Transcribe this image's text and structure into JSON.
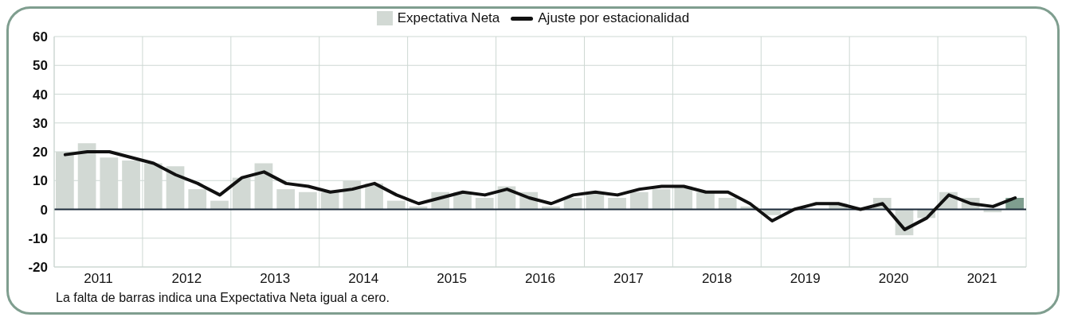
{
  "chart_data": {
    "type": "bar",
    "x": [
      2011.125,
      2011.375,
      2011.625,
      2011.875,
      2012.125,
      2012.375,
      2012.625,
      2012.875,
      2013.125,
      2013.375,
      2013.625,
      2013.875,
      2014.125,
      2014.375,
      2014.625,
      2014.875,
      2015.125,
      2015.375,
      2015.625,
      2015.875,
      2016.125,
      2016.375,
      2016.625,
      2016.875,
      2017.125,
      2017.375,
      2017.625,
      2017.875,
      2018.125,
      2018.375,
      2018.625,
      2018.875,
      2019.125,
      2019.375,
      2019.625,
      2019.875,
      2020.125,
      2020.375,
      2020.625,
      2020.875,
      2021.125,
      2021.375,
      2021.625,
      2021.875
    ],
    "series": [
      {
        "name": "Expectativa Neta",
        "color": "#d2d9d4",
        "colors": [
          "#d2d9d4",
          "#d2d9d4",
          "#d2d9d4",
          "#d2d9d4",
          "#d2d9d4",
          "#d2d9d4",
          "#d2d9d4",
          "#d2d9d4",
          "#d2d9d4",
          "#d2d9d4",
          "#d2d9d4",
          "#d2d9d4",
          "#d2d9d4",
          "#d2d9d4",
          "#d2d9d4",
          "#d2d9d4",
          "#d2d9d4",
          "#d2d9d4",
          "#d2d9d4",
          "#d2d9d4",
          "#d2d9d4",
          "#d2d9d4",
          "#d2d9d4",
          "#d2d9d4",
          "#d2d9d4",
          "#d2d9d4",
          "#d2d9d4",
          "#d2d9d4",
          "#d2d9d4",
          "#d2d9d4",
          "#d2d9d4",
          "#d2d9d4",
          "#d2d9d4",
          "#d2d9d4",
          "#d2d9d4",
          "#d2d9d4",
          "#d2d9d4",
          "#d2d9d4",
          "#d2d9d4",
          "#d2d9d4",
          "#d2d9d4",
          "#d2d9d4",
          "#d2d9d4",
          "#7f9e8f"
        ],
        "values": [
          20,
          23,
          18,
          17,
          16,
          15,
          7,
          3,
          11,
          16,
          7,
          6,
          6,
          10,
          9,
          3,
          1,
          6,
          6,
          4,
          8,
          6,
          1,
          4,
          6,
          4,
          6,
          7,
          8,
          6,
          4,
          1,
          -2,
          null,
          0,
          2,
          0,
          4,
          -9,
          -3,
          6,
          4,
          -1,
          4
        ]
      },
      {
        "name": "Ajuste por estacionalidad",
        "type": "line",
        "color": "#111111",
        "values": [
          19,
          20,
          20,
          18,
          16,
          12,
          9,
          5,
          11,
          13,
          9,
          8,
          6,
          7,
          9,
          5,
          2,
          4,
          6,
          5,
          7,
          4,
          2,
          5,
          6,
          5,
          7,
          8,
          8,
          6,
          6,
          2,
          -4,
          0,
          2,
          2,
          0,
          2,
          -7,
          -3,
          5,
          2,
          1,
          4
        ]
      }
    ],
    "xlim": [
      2011,
      2022
    ],
    "xticks": [
      {
        "value": 2011,
        "label": null
      },
      {
        "value": 2011.5,
        "label": "2011"
      },
      {
        "value": 2012,
        "label": null
      },
      {
        "value": 2012.5,
        "label": "2012"
      },
      {
        "value": 2013,
        "label": null
      },
      {
        "value": 2013.5,
        "label": "2013"
      },
      {
        "value": 2014,
        "label": null
      },
      {
        "value": 2014.5,
        "label": "2014"
      },
      {
        "value": 2015,
        "label": null
      },
      {
        "value": 2015.5,
        "label": "2015"
      },
      {
        "value": 2016,
        "label": null
      },
      {
        "value": 2016.5,
        "label": "2016"
      },
      {
        "value": 2017,
        "label": null
      },
      {
        "value": 2017.5,
        "label": "2017"
      },
      {
        "value": 2018,
        "label": null
      },
      {
        "value": 2018.5,
        "label": "2018"
      },
      {
        "value": 2019,
        "label": null
      },
      {
        "value": 2019.5,
        "label": "2019"
      },
      {
        "value": 2020,
        "label": null
      },
      {
        "value": 2020.5,
        "label": "2020"
      },
      {
        "value": 2021,
        "label": null
      },
      {
        "value": 2021.5,
        "label": "2021"
      },
      {
        "value": 2022,
        "label": null
      }
    ],
    "ylim": [
      -20,
      60
    ],
    "yticks": [
      -20,
      -10,
      0,
      10,
      20,
      30,
      40,
      50,
      60
    ],
    "grid": true,
    "legend": "top",
    "marker": "none",
    "line_style": "solid",
    "ref_lines": [
      {
        "axis": "y",
        "value": 0,
        "color": "#1c2b3a"
      }
    ],
    "annotations": [
      "La falta de barras indica una Expectativa Neta igual a cero."
    ]
  }
}
